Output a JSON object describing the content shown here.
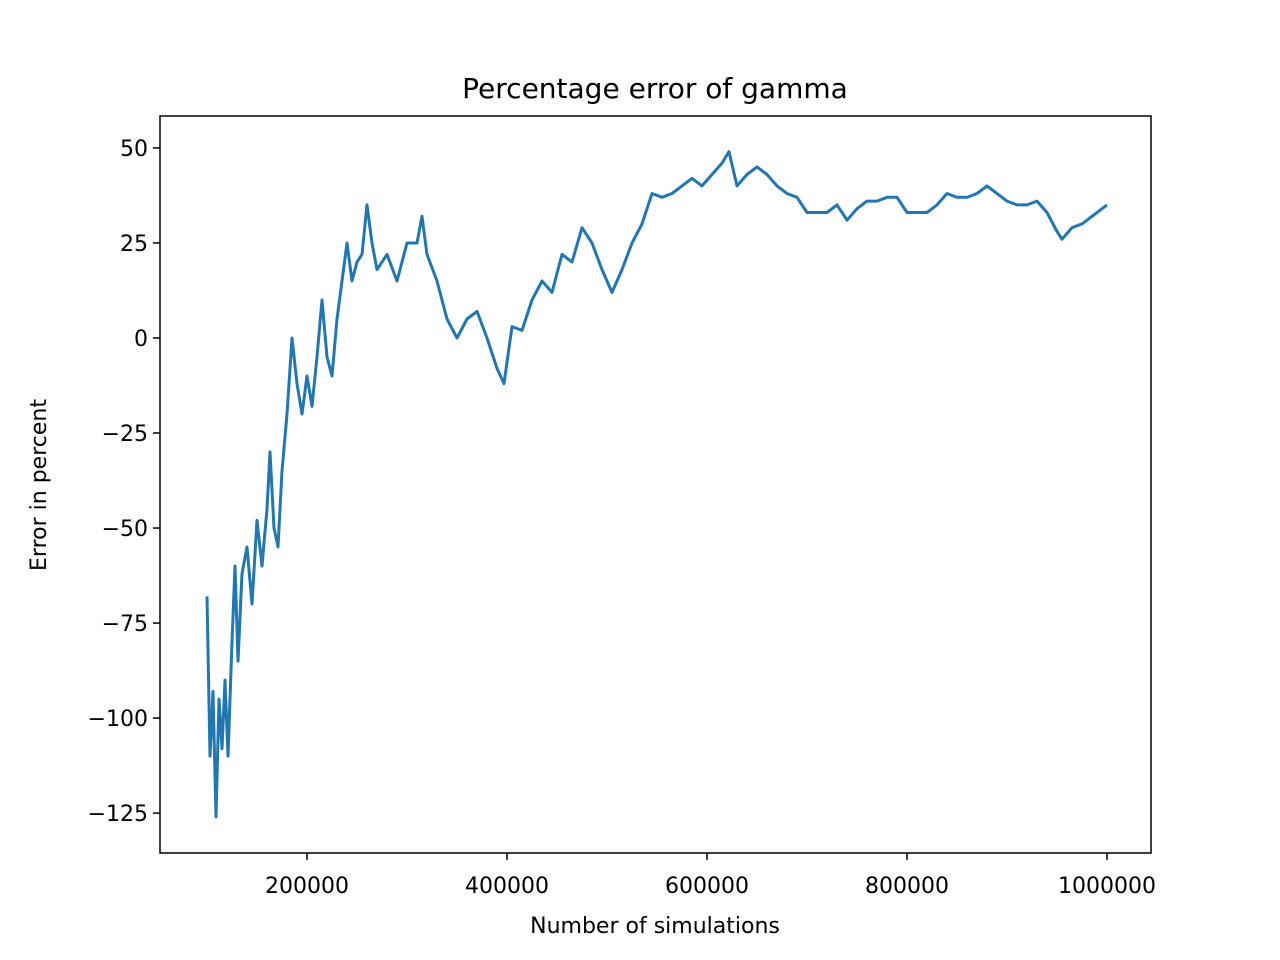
{
  "chart_data": {
    "type": "line",
    "title": "Percentage error of gamma",
    "x_label": "Number of simulations",
    "y_label": "Error in percent",
    "color": "#1f77b4",
    "xlim": [
      53000,
      1044000
    ],
    "ylim": [
      -135.5,
      58.4
    ],
    "xticks": [
      200000,
      400000,
      600000,
      800000,
      1000000
    ],
    "yticks": [
      {
        "value": -125,
        "label": "−125"
      },
      {
        "value": -100,
        "label": "−100"
      },
      {
        "value": -75,
        "label": "−75"
      },
      {
        "value": -50,
        "label": "−50"
      },
      {
        "value": -25,
        "label": "−25"
      },
      0,
      25,
      50
    ],
    "x": [
      100000,
      103000,
      106000,
      109000,
      112000,
      115000,
      118000,
      121000,
      125000,
      128000,
      131000,
      135000,
      140000,
      145000,
      150000,
      155000,
      160000,
      163000,
      167000,
      171000,
      175000,
      180000,
      185000,
      190000,
      195000,
      200000,
      205000,
      210000,
      215000,
      220000,
      225000,
      230000,
      235000,
      240000,
      245000,
      250000,
      255000,
      260000,
      265000,
      270000,
      280000,
      290000,
      300000,
      310000,
      315000,
      320000,
      330000,
      340000,
      350000,
      360000,
      370000,
      380000,
      390000,
      397000,
      405000,
      415000,
      425000,
      435000,
      445000,
      455000,
      465000,
      475000,
      485000,
      495000,
      505000,
      515000,
      525000,
      535000,
      545000,
      555000,
      565000,
      575000,
      585000,
      595000,
      605000,
      615000,
      622000,
      630000,
      640000,
      650000,
      660000,
      670000,
      680000,
      690000,
      700000,
      710000,
      720000,
      730000,
      740000,
      750000,
      760000,
      770000,
      780000,
      790000,
      800000,
      810000,
      820000,
      830000,
      840000,
      850000,
      860000,
      870000,
      880000,
      890000,
      900000,
      910000,
      920000,
      930000,
      940000,
      950000,
      955000,
      965000,
      975000,
      985000,
      1000000
    ],
    "values": [
      -68,
      -110,
      -93,
      -126,
      -95,
      -108,
      -90,
      -110,
      -80,
      -60,
      -85,
      -62,
      -55,
      -70,
      -48,
      -60,
      -45,
      -30,
      -50,
      -55,
      -35,
      -20,
      0,
      -12,
      -20,
      -10,
      -18,
      -5,
      10,
      -5,
      -10,
      5,
      15,
      25,
      15,
      20,
      22,
      35,
      25,
      18,
      22,
      15,
      25,
      25,
      32,
      22,
      15,
      5,
      0,
      5,
      7,
      0,
      -8,
      -12,
      3,
      2,
      10,
      15,
      12,
      22,
      20,
      29,
      25,
      18,
      12,
      18,
      25,
      30,
      38,
      37,
      38,
      40,
      42,
      40,
      43,
      46,
      49,
      40,
      43,
      45,
      43,
      40,
      38,
      37,
      33,
      33,
      33,
      35,
      31,
      34,
      36,
      36,
      37,
      37,
      33,
      33,
      33,
      35,
      38,
      37,
      37,
      38,
      40,
      38,
      36,
      35,
      35,
      36,
      33,
      28,
      26,
      29,
      30,
      32,
      35
    ]
  }
}
